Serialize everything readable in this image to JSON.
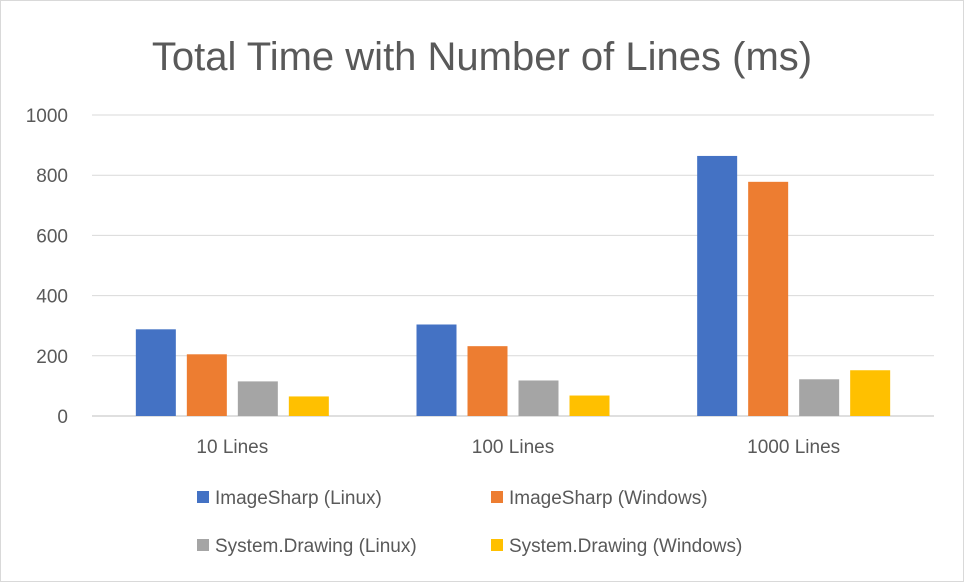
{
  "chart_data": {
    "type": "bar",
    "title": "Total Time with Number of Lines (ms)",
    "categories": [
      "10 Lines",
      "100 Lines",
      "1000 Lines"
    ],
    "series": [
      {
        "name": "ImageSharp (Linux)",
        "color": "#4472C4",
        "values": [
          288,
          304,
          864
        ]
      },
      {
        "name": "ImageSharp (Windows)",
        "color": "#ED7D31",
        "values": [
          205,
          232,
          778
        ]
      },
      {
        "name": "System.Drawing (Linux)",
        "color": "#A5A5A5",
        "values": [
          115,
          118,
          122
        ]
      },
      {
        "name": "System.Drawing (Windows)",
        "color": "#FFC000",
        "values": [
          65,
          68,
          152
        ]
      }
    ],
    "ylim": [
      0,
      1000
    ],
    "yticks": [
      0,
      200,
      400,
      600,
      800,
      1000
    ],
    "grid": true,
    "legend": "bottom"
  }
}
